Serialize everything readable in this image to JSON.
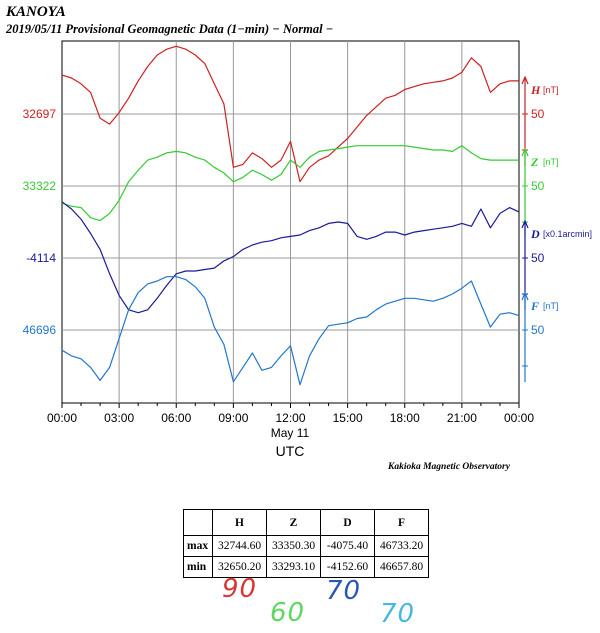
{
  "header": {
    "station": "KANOYA",
    "subtitle": "2019/05/11  Provisional Geomagnetic Data (1−min)  − Normal −"
  },
  "footer": {
    "observatory": "Kakioka Magnetic Observatory"
  },
  "chart_data": {
    "type": "line",
    "title": "2019/05/11 Provisional Geomagnetic Data (1-min) - Normal -",
    "xlabel": "UTC",
    "date_label": "May 11",
    "x_ticks": [
      "00:00",
      "03:00",
      "06:00",
      "09:00",
      "12:00",
      "15:00",
      "18:00",
      "21:00",
      "00:00"
    ],
    "x_range_hours": [
      0,
      24
    ],
    "grid": true,
    "x": [
      0,
      0.5,
      1,
      1.5,
      2,
      2.5,
      3,
      3.5,
      4,
      4.5,
      5,
      5.5,
      6,
      6.5,
      7,
      7.5,
      8,
      8.5,
      9,
      9.5,
      10,
      10.5,
      11,
      11.5,
      12,
      12.5,
      13,
      13.5,
      14,
      14.5,
      15,
      15.5,
      16,
      16.5,
      17,
      17.5,
      18,
      18.5,
      19,
      19.5,
      20,
      20.5,
      21,
      21.5,
      22,
      22.5,
      23,
      23.5,
      24
    ],
    "series": [
      {
        "name": "H",
        "unit": "[nT]",
        "color": "#cc2222",
        "ref_value": "32697",
        "scale_label": "50",
        "scale_nT_per_major": 50,
        "values": [
          32724,
          32722,
          32718,
          32712,
          32694,
          32690,
          32698,
          32708,
          32720,
          32730,
          32738,
          32742,
          32744,
          32742,
          32738,
          32732,
          32718,
          32704,
          32660,
          32662,
          32670,
          32666,
          32660,
          32665,
          32678,
          32650,
          32660,
          32665,
          32668,
          32674,
          32680,
          32688,
          32696,
          32702,
          32708,
          32710,
          32714,
          32716,
          32718,
          32719,
          32720,
          32722,
          32726,
          32736,
          32730,
          32712,
          32718,
          32720,
          32720
        ]
      },
      {
        "name": "Z",
        "unit": "[nT]",
        "color": "#33cc33",
        "ref_value": "33322",
        "scale_label": "50",
        "scale_nT_per_major": 50,
        "values": [
          33310,
          33308,
          33307,
          33300,
          33298,
          33303,
          33312,
          33325,
          33333,
          33340,
          33342,
          33345,
          33346,
          33345,
          33342,
          33340,
          33335,
          33331,
          33325,
          33328,
          33333,
          33330,
          33326,
          33330,
          33340,
          33335,
          33342,
          33346,
          33347,
          33348,
          33349,
          33350,
          33350,
          33350,
          33350,
          33350,
          33350,
          33349,
          33348,
          33347,
          33347,
          33346,
          33350,
          33345,
          33341,
          33340,
          33340,
          33340,
          33340
        ]
      },
      {
        "name": "D",
        "unit": "[x0.1arcmin]",
        "color": "#1a1a99",
        "ref_value": "-4114",
        "scale_label": "50",
        "scale_nT_per_major": 50,
        "values": [
          -4075,
          -4080,
          -4087,
          -4097,
          -4108,
          -4125,
          -4140,
          -4150,
          -4152,
          -4150,
          -4142,
          -4133,
          -4125,
          -4123,
          -4123,
          -4122,
          -4121,
          -4116,
          -4113,
          -4108,
          -4105,
          -4103,
          -4102,
          -4100,
          -4099,
          -4098,
          -4095,
          -4093,
          -4090,
          -4089,
          -4090,
          -4099,
          -4101,
          -4099,
          -4096,
          -4096,
          -4098,
          -4096,
          -4095,
          -4094,
          -4093,
          -4092,
          -4090,
          -4092,
          -4080,
          -4093,
          -4083,
          -4079,
          -4082
        ]
      },
      {
        "name": "F",
        "unit": "[nT]",
        "color": "#2277cc",
        "ref_value": "46696",
        "scale_label": "50",
        "scale_nT_per_major": 50,
        "values": [
          46682,
          46678,
          46676,
          46670,
          46661,
          46670,
          46690,
          46710,
          46722,
          46728,
          46730,
          46733,
          46733,
          46731,
          46726,
          46718,
          46698,
          46686,
          46660,
          46670,
          46680,
          46668,
          46670,
          46678,
          46685,
          46658,
          46678,
          46690,
          46699,
          46700,
          46701,
          46704,
          46705,
          46710,
          46714,
          46716,
          46718,
          46718,
          46717,
          46716,
          46718,
          46721,
          46725,
          46730,
          46714,
          46698,
          46707,
          46708,
          46706
        ]
      }
    ]
  },
  "stats_table": {
    "columns": [
      "H",
      "Z",
      "D",
      "F"
    ],
    "rows": [
      {
        "label": "max",
        "values": [
          "32744.60",
          "33350.30",
          "-4075.40",
          "46733.20"
        ]
      },
      {
        "label": "min",
        "values": [
          "32650.20",
          "33293.10",
          "-4152.60",
          "46657.80"
        ]
      }
    ]
  },
  "handwritten_notes": {
    "H": "90",
    "Z": "60",
    "D": "70",
    "F": "70",
    "colors": {
      "H": "#d93535",
      "Z": "#5fd65f",
      "D": "#2a56b8",
      "F": "#47b8e0"
    }
  }
}
